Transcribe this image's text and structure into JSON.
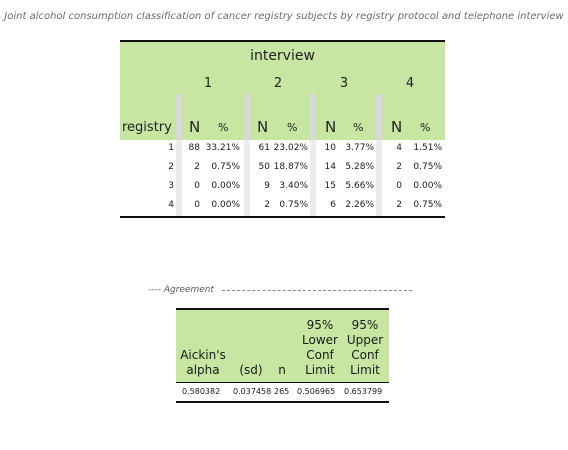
{
  "title": "Joint alcohol consumption classification of cancer registry subjects by registry protocol and telephone interview",
  "main": {
    "interview_label": "interview",
    "registry_label": "registry",
    "columns": [
      "1",
      "2",
      "3",
      "4"
    ],
    "n_label": "N",
    "pct_label": "%",
    "rows": [
      {
        "registry": "1",
        "cells": [
          [
            "88",
            "33.21%"
          ],
          [
            "61",
            "23.02%"
          ],
          [
            "10",
            "3.77%"
          ],
          [
            "4",
            "1.51%"
          ]
        ]
      },
      {
        "registry": "2",
        "cells": [
          [
            "2",
            "0.75%"
          ],
          [
            "50",
            "18.87%"
          ],
          [
            "14",
            "5.28%"
          ],
          [
            "2",
            "0.75%"
          ]
        ]
      },
      {
        "registry": "3",
        "cells": [
          [
            "0",
            "0.00%"
          ],
          [
            "9",
            "3.40%"
          ],
          [
            "15",
            "5.66%"
          ],
          [
            "0",
            "0.00%"
          ]
        ]
      },
      {
        "registry": "4",
        "cells": [
          [
            "0",
            "0.00%"
          ],
          [
            "2",
            "0.75%"
          ],
          [
            "6",
            "2.26%"
          ],
          [
            "2",
            "0.75%"
          ]
        ]
      }
    ]
  },
  "agreement": {
    "label": "---- Agreement",
    "headers": {
      "alpha": [
        "Aickin's",
        "alpha"
      ],
      "sd": "(sd)",
      "n": "n",
      "lower": [
        "95%",
        "Lower",
        "Conf",
        "Limit"
      ],
      "upper": [
        "95%",
        "Upper",
        "Conf",
        "Limit"
      ]
    },
    "values": {
      "alpha": "0.580382",
      "sd": "0.037458",
      "n": "265",
      "lower": "0.506965",
      "upper": "0.653799"
    }
  }
}
